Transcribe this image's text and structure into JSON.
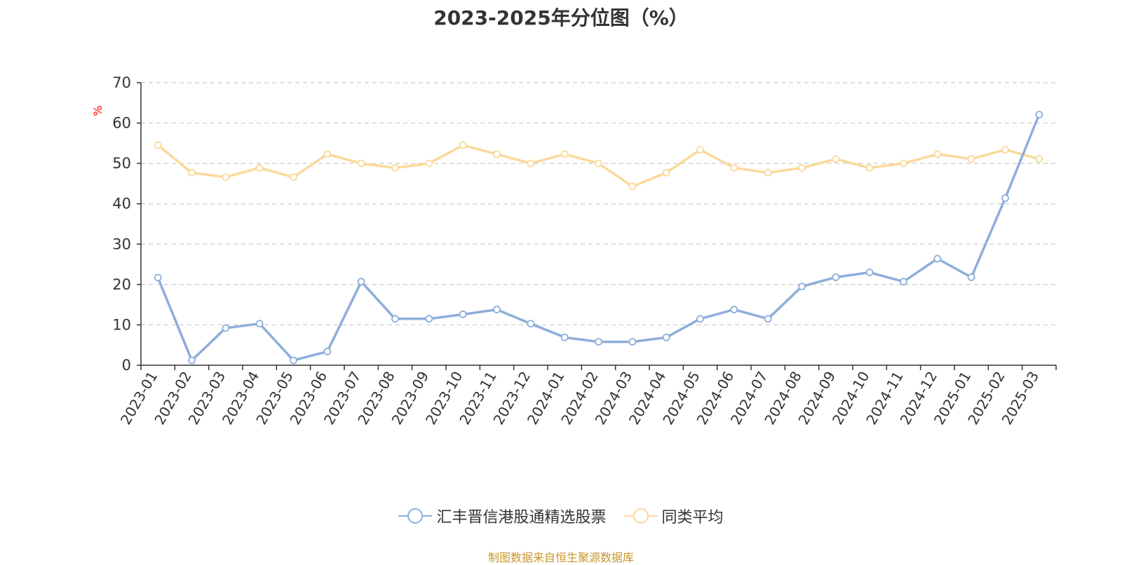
{
  "title": "2023-2025年分位图（%）",
  "source": "制图数据来自恒生聚源数据库",
  "colors": {
    "series1": "#8eaedb",
    "series2": "#fad99a",
    "axis": "#333333",
    "grid": "#cccccc",
    "unit": "#ff0000",
    "source": "#c8962e"
  },
  "chart_data": {
    "type": "line",
    "ylabel": "%",
    "ylim": [
      0,
      70
    ],
    "yticks": [
      0,
      10,
      20,
      30,
      40,
      50,
      60,
      70
    ],
    "grid": true,
    "legend_position": "bottom",
    "categories": [
      "2023-01",
      "2023-02",
      "2023-03",
      "2023-04",
      "2023-05",
      "2023-06",
      "2023-07",
      "2023-08",
      "2023-09",
      "2023-10",
      "2023-11",
      "2023-12",
      "2024-01",
      "2024-02",
      "2024-03",
      "2024-04",
      "2024-05",
      "2024-06",
      "2024-07",
      "2024-08",
      "2024-09",
      "2024-10",
      "2024-11",
      "2024-12",
      "2025-01",
      "2025-02",
      "2025-03"
    ],
    "series": [
      {
        "name": "汇丰晋信港股通精选股票",
        "values": [
          21.7,
          1.2,
          9.2,
          10.3,
          1.2,
          3.4,
          20.7,
          11.5,
          11.5,
          12.6,
          13.8,
          10.3,
          6.9,
          5.8,
          5.8,
          6.9,
          11.5,
          13.8,
          11.5,
          19.5,
          21.8,
          23.0,
          20.7,
          26.4,
          21.8,
          41.4,
          62.1
        ]
      },
      {
        "name": "同类平均",
        "values": [
          54.5,
          47.7,
          46.6,
          48.9,
          46.6,
          52.3,
          50.0,
          48.9,
          50.0,
          54.5,
          52.3,
          50.0,
          52.3,
          50.0,
          44.3,
          47.7,
          53.4,
          48.9,
          47.7,
          48.9,
          51.1,
          48.9,
          50.0,
          52.3,
          51.1,
          53.4,
          51.1
        ]
      }
    ]
  }
}
